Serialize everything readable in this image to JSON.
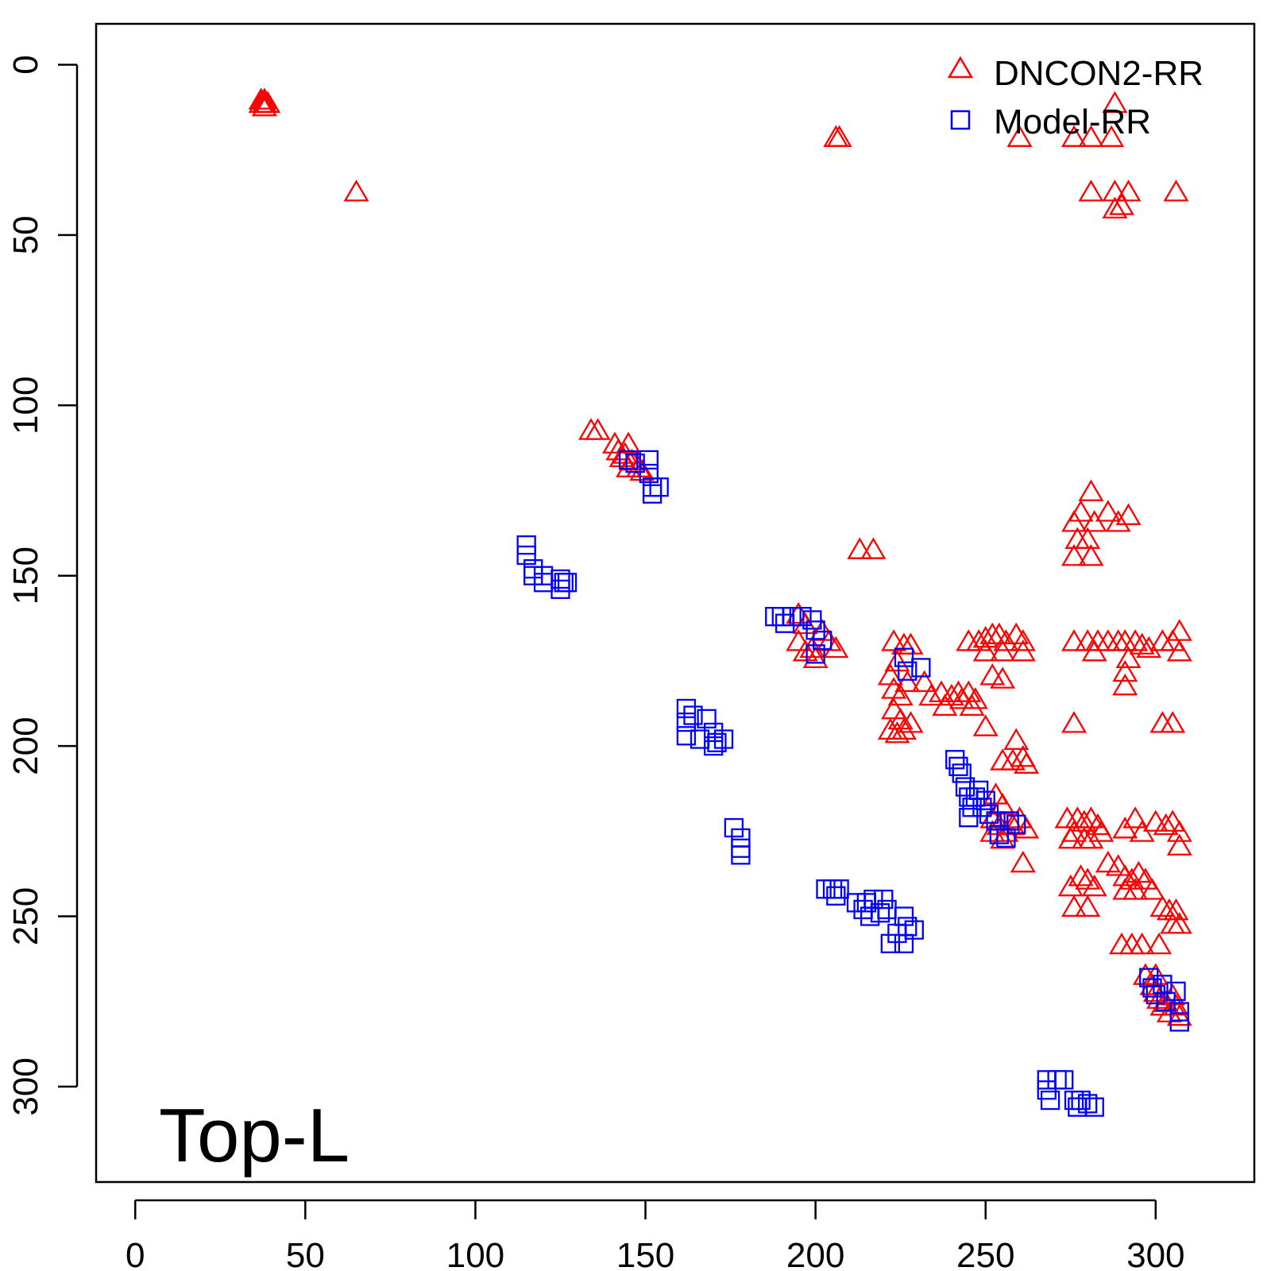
{
  "chart_data": {
    "type": "scatter",
    "title": "",
    "xlabel": "",
    "ylabel": "",
    "xlim": [
      -11.5,
      329
    ],
    "ylim": [
      328,
      -12
    ],
    "y_reversed": true,
    "grid": false,
    "legend_position": "top-right",
    "panel_label": "Top-L",
    "x_ticks": [
      "0",
      "50",
      "100",
      "150",
      "200",
      "250",
      "300"
    ],
    "y_ticks": [
      "0",
      "50",
      "100",
      "150",
      "200",
      "250",
      "300"
    ],
    "x_tick_values": [
      0,
      50,
      100,
      150,
      200,
      250,
      300
    ],
    "y_tick_values": [
      0,
      50,
      100,
      150,
      200,
      250,
      300
    ],
    "series": [
      {
        "name": "DNCON2-RR",
        "marker": "triangle",
        "color": "#ff0000",
        "points": [
          [
            37,
            11
          ],
          [
            38,
            11
          ],
          [
            38,
            12
          ],
          [
            39,
            12
          ],
          [
            37,
            12
          ],
          [
            38,
            13
          ],
          [
            65,
            38
          ],
          [
            206,
            22
          ],
          [
            207,
            22
          ],
          [
            260,
            22
          ],
          [
            276,
            22
          ],
          [
            281,
            22
          ],
          [
            287,
            22
          ],
          [
            288,
            12
          ],
          [
            281,
            38
          ],
          [
            288,
            38
          ],
          [
            292,
            38
          ],
          [
            306,
            38
          ],
          [
            288,
            43
          ],
          [
            290,
            42
          ],
          [
            134,
            108
          ],
          [
            136,
            108
          ],
          [
            141,
            112
          ],
          [
            142,
            114
          ],
          [
            143,
            116
          ],
          [
            144,
            115
          ],
          [
            145,
            112
          ],
          [
            146,
            117
          ],
          [
            145,
            119
          ],
          [
            148,
            119
          ],
          [
            149,
            120
          ],
          [
            213,
            143
          ],
          [
            217,
            143
          ],
          [
            276,
            135
          ],
          [
            278,
            132
          ],
          [
            281,
            126
          ],
          [
            282,
            135
          ],
          [
            280,
            140
          ],
          [
            277,
            140
          ],
          [
            276,
            145
          ],
          [
            281,
            145
          ],
          [
            286,
            132
          ],
          [
            289,
            135
          ],
          [
            292,
            133
          ],
          [
            195,
            162
          ],
          [
            197,
            165
          ],
          [
            195,
            170
          ],
          [
            197,
            173
          ],
          [
            199,
            172
          ],
          [
            202,
            167
          ],
          [
            204,
            170
          ],
          [
            206,
            172
          ],
          [
            200,
            175
          ],
          [
            223,
            170
          ],
          [
            226,
            171
          ],
          [
            228,
            171
          ],
          [
            224,
            176
          ],
          [
            222,
            180
          ],
          [
            223,
            184
          ],
          [
            225,
            186
          ],
          [
            227,
            182
          ],
          [
            223,
            190
          ],
          [
            225,
            193
          ],
          [
            222,
            196
          ],
          [
            224,
            197
          ],
          [
            226,
            196
          ],
          [
            228,
            194
          ],
          [
            232,
            182
          ],
          [
            234,
            186
          ],
          [
            237,
            185
          ],
          [
            240,
            186
          ],
          [
            242,
            185
          ],
          [
            243,
            187
          ],
          [
            245,
            185
          ],
          [
            247,
            187
          ],
          [
            238,
            189
          ],
          [
            246,
            189
          ],
          [
            245,
            170
          ],
          [
            248,
            170
          ],
          [
            250,
            169
          ],
          [
            252,
            168
          ],
          [
            254,
            168
          ],
          [
            256,
            170
          ],
          [
            259,
            168
          ],
          [
            261,
            170
          ],
          [
            261,
            173
          ],
          [
            255,
            173
          ],
          [
            250,
            173
          ],
          [
            252,
            180
          ],
          [
            255,
            181
          ],
          [
            250,
            195
          ],
          [
            276,
            170
          ],
          [
            280,
            170
          ],
          [
            283,
            170
          ],
          [
            286,
            170
          ],
          [
            289,
            170
          ],
          [
            291,
            170
          ],
          [
            294,
            170
          ],
          [
            296,
            171
          ],
          [
            298,
            172
          ],
          [
            302,
            170
          ],
          [
            305,
            170
          ],
          [
            307,
            167
          ],
          [
            307,
            173
          ],
          [
            282,
            173
          ],
          [
            292,
            175
          ],
          [
            291,
            179
          ],
          [
            291,
            183
          ],
          [
            302,
            194
          ],
          [
            305,
            194
          ],
          [
            276,
            194
          ],
          [
            255,
            205
          ],
          [
            258,
            205
          ],
          [
            259,
            199
          ],
          [
            261,
            204
          ],
          [
            262,
            206
          ],
          [
            253,
            215
          ],
          [
            255,
            218
          ],
          [
            252,
            222
          ],
          [
            254,
            224
          ],
          [
            256,
            226
          ],
          [
            252,
            226
          ],
          [
            255,
            228
          ],
          [
            258,
            224
          ],
          [
            260,
            222
          ],
          [
            262,
            225
          ],
          [
            261,
            235
          ],
          [
            274,
            222
          ],
          [
            277,
            222
          ],
          [
            279,
            223
          ],
          [
            281,
            222
          ],
          [
            283,
            224
          ],
          [
            276,
            226
          ],
          [
            279,
            228
          ],
          [
            281,
            228
          ],
          [
            284,
            226
          ],
          [
            275,
            228
          ],
          [
            291,
            225
          ],
          [
            294,
            222
          ],
          [
            296,
            226
          ],
          [
            300,
            223
          ],
          [
            303,
            224
          ],
          [
            305,
            223
          ],
          [
            307,
            226
          ],
          [
            307,
            230
          ],
          [
            275,
            242
          ],
          [
            278,
            239
          ],
          [
            280,
            240
          ],
          [
            282,
            242
          ],
          [
            276,
            248
          ],
          [
            280,
            248
          ],
          [
            286,
            235
          ],
          [
            289,
            236
          ],
          [
            291,
            239
          ],
          [
            293,
            240
          ],
          [
            295,
            238
          ],
          [
            297,
            240
          ],
          [
            299,
            243
          ],
          [
            291,
            243
          ],
          [
            294,
            243
          ],
          [
            302,
            248
          ],
          [
            304,
            249
          ],
          [
            306,
            249
          ],
          [
            307,
            253
          ],
          [
            305,
            253
          ],
          [
            290,
            259
          ],
          [
            293,
            259
          ],
          [
            296,
            259
          ],
          [
            301,
            259
          ],
          [
            297,
            268
          ],
          [
            299,
            271
          ],
          [
            300,
            273
          ],
          [
            301,
            275
          ],
          [
            302,
            277
          ],
          [
            303,
            276
          ],
          [
            304,
            279
          ],
          [
            305,
            274
          ],
          [
            306,
            277
          ],
          [
            307,
            280
          ],
          [
            300,
            268
          ]
        ]
      },
      {
        "name": "Model-RR",
        "marker": "square",
        "color": "#0000ff",
        "points": [
          [
            115,
            141
          ],
          [
            115,
            144
          ],
          [
            117,
            148
          ],
          [
            117,
            150
          ],
          [
            120,
            150
          ],
          [
            120,
            152
          ],
          [
            125,
            151
          ],
          [
            125,
            154
          ],
          [
            126,
            152
          ],
          [
            127,
            152
          ],
          [
            145,
            116
          ],
          [
            147,
            117
          ],
          [
            151,
            116
          ],
          [
            151,
            120
          ],
          [
            152,
            124
          ],
          [
            152,
            126
          ],
          [
            154,
            124
          ],
          [
            162,
            189
          ],
          [
            162,
            193
          ],
          [
            162,
            197
          ],
          [
            164,
            191
          ],
          [
            166,
            198
          ],
          [
            168,
            192
          ],
          [
            170,
            196
          ],
          [
            170,
            200
          ],
          [
            171,
            199
          ],
          [
            173,
            198
          ],
          [
            176,
            224
          ],
          [
            178,
            227
          ],
          [
            178,
            230
          ],
          [
            178,
            232
          ],
          [
            188,
            162
          ],
          [
            190,
            162
          ],
          [
            191,
            164
          ],
          [
            193,
            162
          ],
          [
            196,
            162
          ],
          [
            199,
            163
          ],
          [
            200,
            166
          ],
          [
            200,
            173
          ],
          [
            202,
            169
          ],
          [
            203,
            242
          ],
          [
            205,
            242
          ],
          [
            206,
            244
          ],
          [
            207,
            242
          ],
          [
            212,
            246
          ],
          [
            214,
            248
          ],
          [
            215,
            246
          ],
          [
            216,
            250
          ],
          [
            217,
            245
          ],
          [
            219,
            249
          ],
          [
            220,
            245
          ],
          [
            221,
            248
          ],
          [
            224,
            255
          ],
          [
            226,
            258
          ],
          [
            226,
            250
          ],
          [
            227,
            253
          ],
          [
            229,
            254
          ],
          [
            222,
            258
          ],
          [
            231,
            177
          ],
          [
            226,
            174
          ],
          [
            227,
            178
          ],
          [
            241,
            204
          ],
          [
            242,
            206
          ],
          [
            243,
            208
          ],
          [
            244,
            212
          ],
          [
            245,
            215
          ],
          [
            246,
            218
          ],
          [
            247,
            215
          ],
          [
            248,
            213
          ],
          [
            249,
            218
          ],
          [
            250,
            216
          ],
          [
            251,
            220
          ],
          [
            253,
            222
          ],
          [
            254,
            226
          ],
          [
            256,
            227
          ],
          [
            257,
            222
          ],
          [
            259,
            223
          ],
          [
            245,
            221
          ],
          [
            268,
            298
          ],
          [
            268,
            301
          ],
          [
            269,
            304
          ],
          [
            271,
            298
          ],
          [
            273,
            298
          ],
          [
            276,
            304
          ],
          [
            277,
            306
          ],
          [
            278,
            304
          ],
          [
            280,
            305
          ],
          [
            282,
            306
          ],
          [
            298,
            268
          ],
          [
            299,
            271
          ],
          [
            300,
            273
          ],
          [
            302,
            270
          ],
          [
            303,
            275
          ],
          [
            306,
            272
          ],
          [
            307,
            278
          ],
          [
            307,
            281
          ]
        ]
      }
    ]
  }
}
